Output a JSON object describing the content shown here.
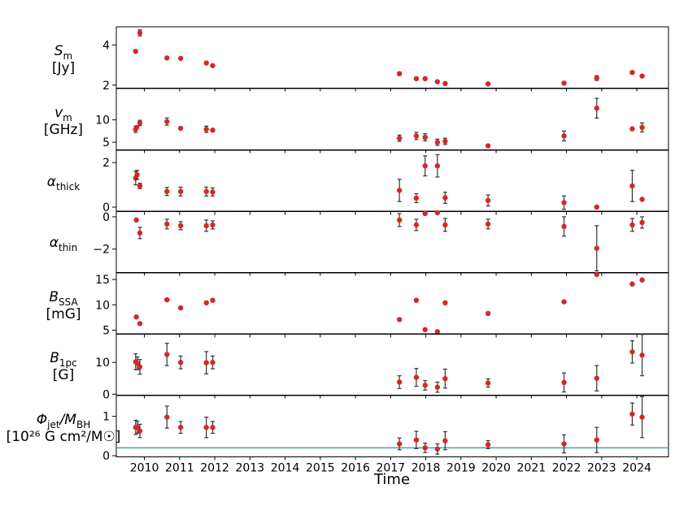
{
  "chart_data": {
    "type": "scatter",
    "xlabel": "Time",
    "xlim": [
      2009.2,
      2024.9
    ],
    "x_ticks": [
      2010,
      2011,
      2012,
      2013,
      2014,
      2015,
      2016,
      2017,
      2018,
      2019,
      2020,
      2021,
      2022,
      2023,
      2024
    ],
    "x_tick_labels": [
      "2010",
      "2011",
      "2012",
      "2013",
      "2014",
      "2015",
      "2016",
      "2017",
      "2018",
      "2019",
      "2020",
      "2021",
      "2022",
      "2023",
      "2024"
    ],
    "grid": false,
    "legend": null,
    "marker_color": "#d62728",
    "errorbar_color": "#333333",
    "panels": [
      {
        "label_main": "S",
        "label_sub": "m",
        "label_unit": "[Jy]",
        "ylim": [
          1.85,
          4.9
        ],
        "y_ticks": [
          2,
          4
        ],
        "y_tick_labels": [
          "2",
          "4"
        ],
        "points": [
          {
            "x": 2009.75,
            "y": 3.68,
            "err": 0.0
          },
          {
            "x": 2009.87,
            "y": 4.6,
            "err": 0.15
          },
          {
            "x": 2010.64,
            "y": 3.35,
            "err": 0.0
          },
          {
            "x": 2011.03,
            "y": 3.33,
            "err": 0.0
          },
          {
            "x": 2011.76,
            "y": 3.1,
            "err": 0.0
          },
          {
            "x": 2011.94,
            "y": 2.97,
            "err": 0.0
          },
          {
            "x": 2017.25,
            "y": 2.57,
            "err": 0.08
          },
          {
            "x": 2017.73,
            "y": 2.32,
            "err": 0.0
          },
          {
            "x": 2017.98,
            "y": 2.32,
            "err": 0.0
          },
          {
            "x": 2018.33,
            "y": 2.17,
            "err": 0.0
          },
          {
            "x": 2018.55,
            "y": 2.08,
            "err": 0.0
          },
          {
            "x": 2019.77,
            "y": 2.06,
            "err": 0.0
          },
          {
            "x": 2021.93,
            "y": 2.1,
            "err": 0.0
          },
          {
            "x": 2022.86,
            "y": 2.35,
            "err": 0.12
          },
          {
            "x": 2023.87,
            "y": 2.63,
            "err": 0.0
          },
          {
            "x": 2024.15,
            "y": 2.45,
            "err": 0.0
          }
        ]
      },
      {
        "label_main": "v",
        "label_sub": "m",
        "label_unit": "[GHz]",
        "ylim": [
          3.3,
          17.0
        ],
        "y_ticks": [
          5,
          10
        ],
        "y_tick_labels": [
          "5",
          "10"
        ],
        "points": [
          {
            "x": 2009.75,
            "y": 7.9,
            "err": 0.7
          },
          {
            "x": 2009.78,
            "y": 8.3,
            "err": 0.0
          },
          {
            "x": 2009.87,
            "y": 9.3,
            "err": 0.6
          },
          {
            "x": 2010.64,
            "y": 9.6,
            "err": 0.8
          },
          {
            "x": 2011.03,
            "y": 8.1,
            "err": 0.0
          },
          {
            "x": 2011.76,
            "y": 7.9,
            "err": 0.7
          },
          {
            "x": 2011.94,
            "y": 7.7,
            "err": 0.0
          },
          {
            "x": 2017.25,
            "y": 5.9,
            "err": 0.7
          },
          {
            "x": 2017.73,
            "y": 6.4,
            "err": 0.8
          },
          {
            "x": 2017.98,
            "y": 6.1,
            "err": 0.8
          },
          {
            "x": 2018.33,
            "y": 5.0,
            "err": 0.7
          },
          {
            "x": 2018.55,
            "y": 5.2,
            "err": 0.7
          },
          {
            "x": 2019.77,
            "y": 4.2,
            "err": 0.0
          },
          {
            "x": 2021.93,
            "y": 6.4,
            "err": 1.1
          },
          {
            "x": 2022.86,
            "y": 12.6,
            "err": 2.2
          },
          {
            "x": 2023.87,
            "y": 8.0,
            "err": 0.0
          },
          {
            "x": 2024.15,
            "y": 8.3,
            "err": 1.0
          }
        ]
      },
      {
        "label_main": "α",
        "label_sub": "thick",
        "label_unit": "",
        "ylim": [
          -0.2,
          2.55
        ],
        "y_ticks": [
          0,
          2
        ],
        "y_tick_labels": [
          "0",
          "2"
        ],
        "points": [
          {
            "x": 2009.75,
            "y": 1.3,
            "err": 0.3
          },
          {
            "x": 2009.79,
            "y": 1.45,
            "err": 0.2
          },
          {
            "x": 2009.87,
            "y": 0.95,
            "err": 0.12
          },
          {
            "x": 2010.64,
            "y": 0.7,
            "err": 0.18
          },
          {
            "x": 2011.03,
            "y": 0.7,
            "err": 0.2
          },
          {
            "x": 2011.76,
            "y": 0.7,
            "err": 0.2
          },
          {
            "x": 2011.94,
            "y": 0.68,
            "err": 0.18
          },
          {
            "x": 2017.25,
            "y": 0.75,
            "err": 0.5
          },
          {
            "x": 2017.73,
            "y": 0.4,
            "err": 0.2
          },
          {
            "x": 2017.98,
            "y": 1.85,
            "err": 0.45
          },
          {
            "x": 2018.33,
            "y": 1.85,
            "err": 0.5
          },
          {
            "x": 2018.55,
            "y": 0.42,
            "err": 0.25
          },
          {
            "x": 2019.77,
            "y": 0.3,
            "err": 0.25
          },
          {
            "x": 2021.93,
            "y": 0.2,
            "err": 0.3
          },
          {
            "x": 2022.86,
            "y": 0.0,
            "err": 0.0
          },
          {
            "x": 2023.87,
            "y": 0.95,
            "err": 0.7
          },
          {
            "x": 2024.15,
            "y": 0.35,
            "err": 0.0
          }
        ]
      },
      {
        "label_main": "α",
        "label_sub": "thin",
        "label_unit": "",
        "ylim": [
          -3.45,
          0.35
        ],
        "y_ticks": [
          -2,
          0
        ],
        "y_tick_labels": [
          "−2",
          "0"
        ],
        "points": [
          {
            "x": 2009.77,
            "y": -0.2,
            "err": 0.0
          },
          {
            "x": 2009.87,
            "y": -1.0,
            "err": 0.35
          },
          {
            "x": 2010.64,
            "y": -0.45,
            "err": 0.3
          },
          {
            "x": 2011.03,
            "y": -0.55,
            "err": 0.25
          },
          {
            "x": 2011.76,
            "y": -0.55,
            "err": 0.35
          },
          {
            "x": 2011.94,
            "y": -0.5,
            "err": 0.25
          },
          {
            "x": 2017.25,
            "y": -0.2,
            "err": 0.4
          },
          {
            "x": 2017.73,
            "y": -0.5,
            "err": 0.35
          },
          {
            "x": 2017.98,
            "y": 0.2,
            "err": 0.0
          },
          {
            "x": 2018.33,
            "y": 0.25,
            "err": 0.0
          },
          {
            "x": 2018.55,
            "y": -0.5,
            "err": 0.4
          },
          {
            "x": 2019.77,
            "y": -0.45,
            "err": 0.3
          },
          {
            "x": 2021.93,
            "y": -0.6,
            "err": 0.6
          },
          {
            "x": 2022.86,
            "y": -1.95,
            "err": 1.4
          },
          {
            "x": 2023.87,
            "y": -0.5,
            "err": 0.4
          },
          {
            "x": 2024.15,
            "y": -0.35,
            "err": 0.35
          }
        ]
      },
      {
        "label_main": "B",
        "label_sub": "SSA",
        "label_unit": "[mG]",
        "ylim": [
          4.2,
          16.3
        ],
        "y_ticks": [
          5,
          10,
          15
        ],
        "y_tick_labels": [
          "5",
          "10",
          "15"
        ],
        "points": [
          {
            "x": 2009.77,
            "y": 7.6,
            "err": 0.0
          },
          {
            "x": 2009.87,
            "y": 6.3,
            "err": 0.0
          },
          {
            "x": 2010.64,
            "y": 11.0,
            "err": 0.0
          },
          {
            "x": 2011.03,
            "y": 9.4,
            "err": 0.0
          },
          {
            "x": 2011.76,
            "y": 10.4,
            "err": 0.0
          },
          {
            "x": 2011.94,
            "y": 10.9,
            "err": 0.0
          },
          {
            "x": 2017.25,
            "y": 7.1,
            "err": 0.0
          },
          {
            "x": 2017.73,
            "y": 10.9,
            "err": 0.0
          },
          {
            "x": 2017.98,
            "y": 5.1,
            "err": 0.0
          },
          {
            "x": 2018.33,
            "y": 4.7,
            "err": 0.0
          },
          {
            "x": 2018.55,
            "y": 10.4,
            "err": 0.0
          },
          {
            "x": 2019.77,
            "y": 8.3,
            "err": 0.0
          },
          {
            "x": 2021.93,
            "y": 10.6,
            "err": 0.0
          },
          {
            "x": 2022.86,
            "y": 16.0,
            "err": 0.0
          },
          {
            "x": 2023.87,
            "y": 14.1,
            "err": 0.0
          },
          {
            "x": 2024.15,
            "y": 14.9,
            "err": 0.0
          }
        ]
      },
      {
        "label_main": "B",
        "label_sub": "1pc",
        "label_unit": "[G]",
        "ylim": [
          -0.3,
          19.0
        ],
        "y_ticks": [
          0,
          10
        ],
        "y_tick_labels": [
          "0",
          "10"
        ],
        "points": [
          {
            "x": 2009.75,
            "y": 10.2,
            "err": 2.5
          },
          {
            "x": 2009.8,
            "y": 9.7,
            "err": 2.0
          },
          {
            "x": 2009.87,
            "y": 8.6,
            "err": 2.3
          },
          {
            "x": 2010.64,
            "y": 12.5,
            "err": 3.5
          },
          {
            "x": 2011.03,
            "y": 10.0,
            "err": 2.0
          },
          {
            "x": 2011.76,
            "y": 9.9,
            "err": 3.5
          },
          {
            "x": 2011.94,
            "y": 10.0,
            "err": 2.0
          },
          {
            "x": 2017.25,
            "y": 3.8,
            "err": 2.0
          },
          {
            "x": 2017.73,
            "y": 5.3,
            "err": 2.8
          },
          {
            "x": 2017.98,
            "y": 2.8,
            "err": 1.5
          },
          {
            "x": 2018.33,
            "y": 2.2,
            "err": 1.6
          },
          {
            "x": 2018.55,
            "y": 4.9,
            "err": 3.0
          },
          {
            "x": 2019.77,
            "y": 3.5,
            "err": 1.3
          },
          {
            "x": 2021.93,
            "y": 3.7,
            "err": 3.0
          },
          {
            "x": 2022.86,
            "y": 5.0,
            "err": 4.0
          },
          {
            "x": 2023.87,
            "y": 13.3,
            "err": 3.5
          },
          {
            "x": 2024.15,
            "y": 12.3,
            "err": 6.5
          }
        ]
      },
      {
        "label_main": "Φ",
        "label_sub": "jet",
        "label_main2": "/M",
        "label_sub2": "BH",
        "label_unit": "[10²⁶ G cm²/M☉]",
        "ylim": [
          -0.03,
          1.53
        ],
        "y_ticks": [
          0,
          1
        ],
        "y_tick_labels": [
          "0",
          "1"
        ],
        "hline": {
          "y": 0.2,
          "color": "#4a9cc7"
        },
        "points": [
          {
            "x": 2009.75,
            "y": 0.72,
            "err": 0.18
          },
          {
            "x": 2009.8,
            "y": 0.72,
            "err": 0.15
          },
          {
            "x": 2009.87,
            "y": 0.63,
            "err": 0.17
          },
          {
            "x": 2010.64,
            "y": 0.98,
            "err": 0.28
          },
          {
            "x": 2011.03,
            "y": 0.72,
            "err": 0.15
          },
          {
            "x": 2011.76,
            "y": 0.72,
            "err": 0.26
          },
          {
            "x": 2011.94,
            "y": 0.72,
            "err": 0.15
          },
          {
            "x": 2017.25,
            "y": 0.3,
            "err": 0.15
          },
          {
            "x": 2017.73,
            "y": 0.4,
            "err": 0.22
          },
          {
            "x": 2017.98,
            "y": 0.2,
            "err": 0.12
          },
          {
            "x": 2018.33,
            "y": 0.17,
            "err": 0.13
          },
          {
            "x": 2018.55,
            "y": 0.38,
            "err": 0.23
          },
          {
            "x": 2019.77,
            "y": 0.28,
            "err": 0.1
          },
          {
            "x": 2021.93,
            "y": 0.3,
            "err": 0.23
          },
          {
            "x": 2022.86,
            "y": 0.4,
            "err": 0.32
          },
          {
            "x": 2023.87,
            "y": 1.06,
            "err": 0.28
          },
          {
            "x": 2024.15,
            "y": 0.98,
            "err": 0.52
          }
        ]
      }
    ]
  }
}
